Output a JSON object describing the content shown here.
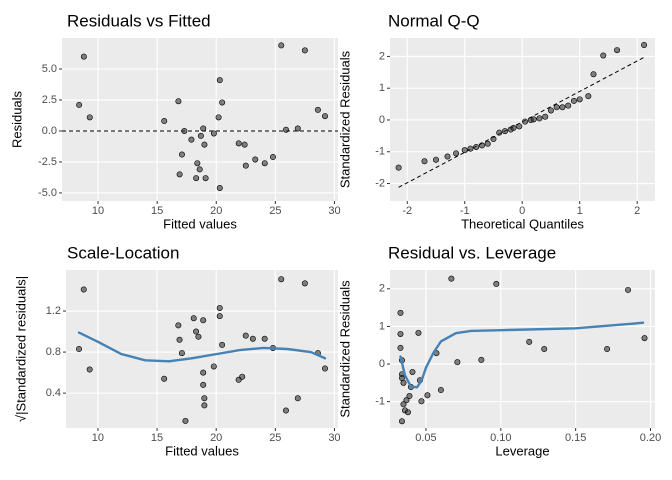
{
  "chart_data": [
    {
      "type": "scatter",
      "title": "Residuals vs Fitted",
      "x_label": "Fitted values",
      "y_label": "Residuals",
      "x": [
        8.8,
        8.4,
        9.3,
        15.6,
        16.8,
        17.3,
        16.9,
        17.1,
        17.9,
        18.3,
        18.6,
        18.9,
        18.7,
        19.0,
        19.1,
        18.4,
        19.8,
        20.3,
        20.5,
        20.3,
        20.2,
        21.9,
        22.4,
        22.5,
        23.3,
        24.1,
        24.8,
        25.5,
        25.9,
        26.9,
        27.5,
        28.6,
        29.2
      ],
      "values": [
        6.0,
        2.1,
        1.1,
        0.8,
        2.4,
        0.0,
        -3.5,
        -1.9,
        -0.7,
        -3.8,
        -3.1,
        0.2,
        -0.4,
        -1.1,
        -3.8,
        -2.6,
        -0.2,
        4.1,
        2.3,
        -4.6,
        1.1,
        -1.0,
        -1.1,
        -2.8,
        -2.3,
        -2.6,
        -2.1,
        6.9,
        0.1,
        0.2,
        6.5,
        1.7,
        1.2
      ],
      "color": "#333333",
      "hline": 0,
      "xlim": [
        6.95,
        30.3
      ],
      "ylim": [
        -5.65,
        7.5
      ],
      "xticks": [
        10,
        15,
        20,
        25,
        30
      ],
      "yticks": [
        {
          "value": -5,
          "label": "-5.0"
        },
        {
          "value": -2.5,
          "label": "-2.5"
        },
        {
          "value": 0,
          "label": "0.0"
        },
        {
          "value": 2.5,
          "label": "2.5"
        },
        {
          "value": 5,
          "label": "5.0"
        }
      ],
      "grid": true
    },
    {
      "type": "scatter",
      "title": "Normal Q-Q",
      "x_label": "Theoretical Quantiles",
      "y_label": "Standardized Residuals",
      "x": [
        -2.15,
        -1.7,
        -1.5,
        -1.3,
        -1.15,
        -1.0,
        -0.9,
        -0.8,
        -0.7,
        -0.6,
        -0.5,
        -0.4,
        -0.3,
        -0.2,
        -0.15,
        -0.05,
        0.05,
        0.15,
        0.2,
        0.3,
        0.4,
        0.5,
        0.6,
        0.7,
        0.8,
        0.9,
        1.0,
        1.15,
        1.24,
        1.41,
        1.65,
        2.12
      ],
      "values": [
        -1.5,
        -1.3,
        -1.25,
        -1.15,
        -1.05,
        -0.95,
        -0.9,
        -0.85,
        -0.8,
        -0.75,
        -0.6,
        -0.4,
        -0.35,
        -0.3,
        -0.25,
        -0.2,
        -0.05,
        0.0,
        0.02,
        0.05,
        0.1,
        0.3,
        0.4,
        0.4,
        0.45,
        0.6,
        0.65,
        0.75,
        1.44,
        2.03,
        2.2,
        2.36
      ],
      "color": "#333333",
      "ref_line": {
        "x": [
          -2.15,
          2.15
        ],
        "values": [
          -2.12,
          2.0
        ]
      },
      "xlim": [
        -2.3,
        2.31
      ],
      "ylim": [
        -2.55,
        2.58
      ],
      "xticks": [
        -2,
        -1,
        0,
        1,
        2
      ],
      "yticks": [
        -2,
        -1,
        0,
        1,
        2
      ],
      "grid": true
    },
    {
      "type": "scatter",
      "title": "Scale-Location",
      "x_label": "Fitted values",
      "y_label": "√|Standardized residuals|",
      "x": [
        8.8,
        8.4,
        9.3,
        15.6,
        16.8,
        17.1,
        16.9,
        17.4,
        18.1,
        18.3,
        18.5,
        18.9,
        18.9,
        18.9,
        19.0,
        19.0,
        19.8,
        20.3,
        20.3,
        20.5,
        21.9,
        22.2,
        22.5,
        23.1,
        24.1,
        24.8,
        25.5,
        25.9,
        26.9,
        27.5,
        28.6,
        29.2
      ],
      "values": [
        1.41,
        0.83,
        0.63,
        0.54,
        1.06,
        0.79,
        0.92,
        0.13,
        1.13,
        1.0,
        0.95,
        1.11,
        0.6,
        0.48,
        0.35,
        0.28,
        0.66,
        1.23,
        1.15,
        0.87,
        0.53,
        0.56,
        0.96,
        0.93,
        0.93,
        0.84,
        1.51,
        0.23,
        0.35,
        1.47,
        0.79,
        0.64
      ],
      "color": "#333333",
      "smooth": {
        "color": "#4682b4",
        "x": [
          8.4,
          10,
          12,
          14,
          16,
          18,
          20,
          22,
          24,
          26,
          28,
          29.2
        ],
        "values": [
          0.99,
          0.9,
          0.78,
          0.72,
          0.71,
          0.74,
          0.78,
          0.82,
          0.84,
          0.83,
          0.8,
          0.74
        ]
      },
      "xlim": [
        7.3,
        30.3
      ],
      "ylim": [
        0.06,
        1.6
      ],
      "xticks": [
        10,
        15,
        20,
        25,
        30
      ],
      "yticks": [
        0.4,
        0.8,
        1.2
      ],
      "grid": true
    },
    {
      "type": "scatter",
      "title": "Residual vs. Leverage",
      "x_label": "Leverage",
      "y_label": "Standardized Residuals",
      "x": [
        0.033,
        0.033,
        0.033,
        0.034,
        0.034,
        0.034,
        0.035,
        0.035,
        0.036,
        0.037,
        0.034,
        0.038,
        0.039,
        0.04,
        0.041,
        0.046,
        0.045,
        0.047,
        0.051,
        0.057,
        0.06,
        0.067,
        0.071,
        0.087,
        0.097,
        0.119,
        0.129,
        0.171,
        0.185,
        0.196
      ],
      "values": [
        1.36,
        0.8,
        0.43,
        0.1,
        -0.27,
        -0.37,
        -0.5,
        -1.07,
        -1.23,
        -0.96,
        -1.52,
        -1.28,
        -0.85,
        -0.61,
        -0.21,
        -0.43,
        0.83,
        -0.99,
        -0.83,
        0.29,
        -0.69,
        2.27,
        0.05,
        0.11,
        2.13,
        0.59,
        0.4,
        0.4,
        1.97,
        0.69
      ],
      "color": "#333333",
      "smooth": {
        "color": "#4682b4",
        "x": [
          0.033,
          0.036,
          0.04,
          0.044,
          0.047,
          0.05,
          0.055,
          0.06,
          0.07,
          0.08,
          0.1,
          0.15,
          0.19,
          0.195
        ],
        "values": [
          0.2,
          -0.3,
          -0.6,
          -0.62,
          -0.45,
          -0.1,
          0.3,
          0.6,
          0.82,
          0.88,
          0.9,
          0.95,
          1.08,
          1.1
        ]
      },
      "xlim": [
        0.026,
        0.203
      ],
      "ylim": [
        -1.7,
        2.5
      ],
      "xticks": [
        0.05,
        {
          "value": 0.1,
          "label": "0.10"
        },
        0.15,
        {
          "value": 0.2,
          "label": "0.20"
        }
      ],
      "yticks": [
        -1,
        0,
        1,
        2
      ],
      "grid": true
    }
  ]
}
